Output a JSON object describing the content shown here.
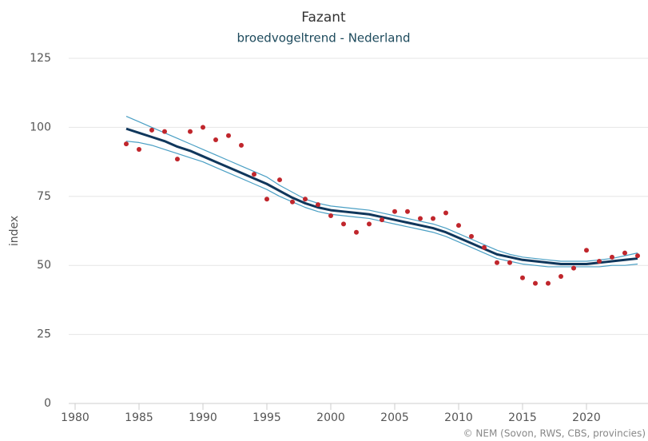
{
  "chart_data": {
    "type": "line",
    "title": "Fazant",
    "subtitle": "broedvogeltrend - Nederland",
    "y_label": "index",
    "credit": "© NEM (Sovon, RWS, CBS, provincies)",
    "xlim": [
      1980,
      2024.5
    ],
    "xticks": [
      1980,
      1985,
      1990,
      1995,
      2000,
      2005,
      2010,
      2015,
      2020
    ],
    "ylim": [
      0,
      125
    ],
    "yticks": [
      0,
      25,
      50,
      75,
      100,
      125
    ],
    "grid": true,
    "x": [
      1984,
      1985,
      1986,
      1987,
      1988,
      1989,
      1990,
      1991,
      1992,
      1993,
      1994,
      1995,
      1996,
      1997,
      1998,
      1999,
      2000,
      2001,
      2002,
      2003,
      2004,
      2005,
      2006,
      2007,
      2008,
      2009,
      2010,
      2011,
      2012,
      2013,
      2014,
      2015,
      2016,
      2017,
      2018,
      2019,
      2020,
      2021,
      2022,
      2023,
      2024
    ],
    "series": [
      {
        "kind": "line",
        "color": "#4a9fc4",
        "width": 1.2,
        "values": [
          104,
          102,
          100,
          98,
          96,
          94,
          92,
          90,
          88,
          86,
          84,
          82,
          79,
          76.5,
          74,
          72.5,
          71.5,
          71,
          70.5,
          70,
          69,
          68,
          67,
          66,
          65,
          63.5,
          61.5,
          59.5,
          57.5,
          55.5,
          54,
          53,
          52.5,
          52,
          51.5,
          51.5,
          51.5,
          52,
          52.5,
          53.5,
          54.5
        ]
      },
      {
        "kind": "line",
        "color": "#4a9fc4",
        "width": 1.2,
        "values": [
          95,
          94.5,
          93.5,
          92,
          90.5,
          89,
          87.5,
          85.5,
          83.5,
          81.5,
          79.5,
          77.5,
          75,
          73,
          71,
          69.5,
          68.5,
          68,
          67.5,
          67,
          66,
          65,
          64,
          63,
          62,
          60.5,
          58.5,
          56.5,
          54.5,
          52.5,
          51.5,
          50.5,
          50,
          49.5,
          49.5,
          49.5,
          49.5,
          49.5,
          50,
          50,
          50.5
        ]
      },
      {
        "kind": "line",
        "color": "#10375c",
        "width": 3,
        "values": [
          99.5,
          98,
          96.5,
          95,
          93,
          91.5,
          89.5,
          87.5,
          85.5,
          83.5,
          81.5,
          79.5,
          77,
          74.5,
          72.5,
          71,
          70,
          69.5,
          69,
          68.5,
          67.5,
          66.5,
          65.5,
          64.5,
          63.5,
          62,
          60,
          58,
          56,
          54,
          53,
          52,
          51.5,
          51,
          50.5,
          50.5,
          50.5,
          51,
          51.5,
          52,
          52.5
        ]
      },
      {
        "kind": "scatter",
        "color": "#c0262c",
        "values": [
          94,
          92,
          99,
          98.5,
          88.5,
          98.5,
          100,
          95.5,
          97,
          93.5,
          83,
          74,
          81,
          73,
          74,
          72,
          68,
          65,
          62,
          65,
          66.5,
          69.5,
          69.5,
          67,
          67,
          69,
          64.5,
          60.5,
          56.5,
          51,
          51,
          45.5,
          43.5,
          43.5,
          46,
          49,
          55.5,
          51.5,
          53,
          54.5,
          53.5
        ]
      }
    ]
  }
}
